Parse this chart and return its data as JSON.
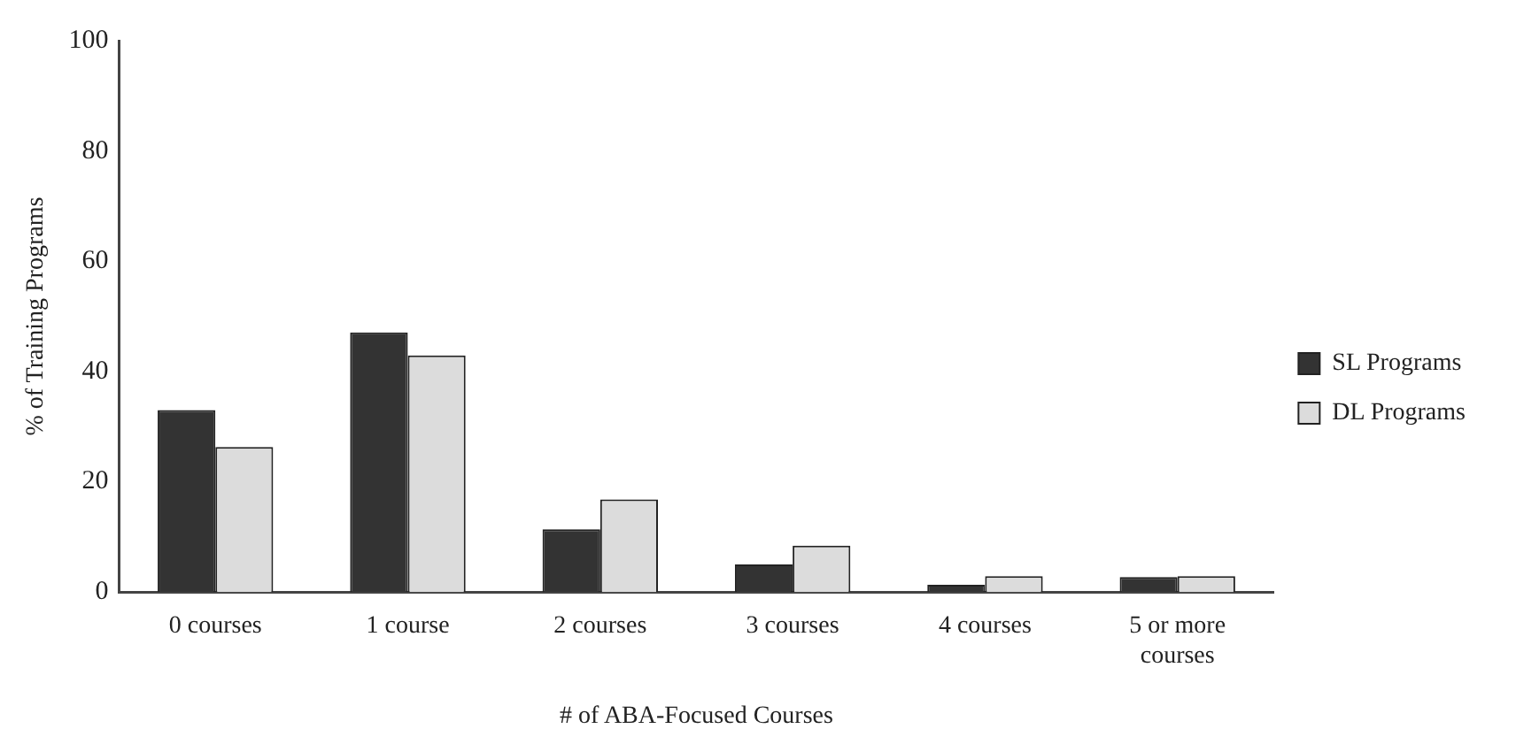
{
  "chart_data": {
    "type": "bar",
    "xlabel": "# of ABA-Focused Courses",
    "ylabel": "% of Training Programs",
    "categories": [
      "0 courses",
      "1 course",
      "2 courses",
      "3 courses",
      "4 courses",
      "5 or more courses"
    ],
    "series": [
      {
        "name": "SL Programs",
        "color": "#333333",
        "values": [
          33,
          47.1,
          11.4,
          5,
          1.3,
          2.7
        ]
      },
      {
        "name": "DL Programs",
        "color": "#dcdcdc",
        "values": [
          26.3,
          42.9,
          16.8,
          8.4,
          2.9,
          2.9
        ]
      }
    ],
    "ylim": [
      0,
      100
    ],
    "yticks": [
      0,
      20,
      40,
      60,
      80,
      100
    ],
    "grid": false,
    "legend": "right"
  }
}
